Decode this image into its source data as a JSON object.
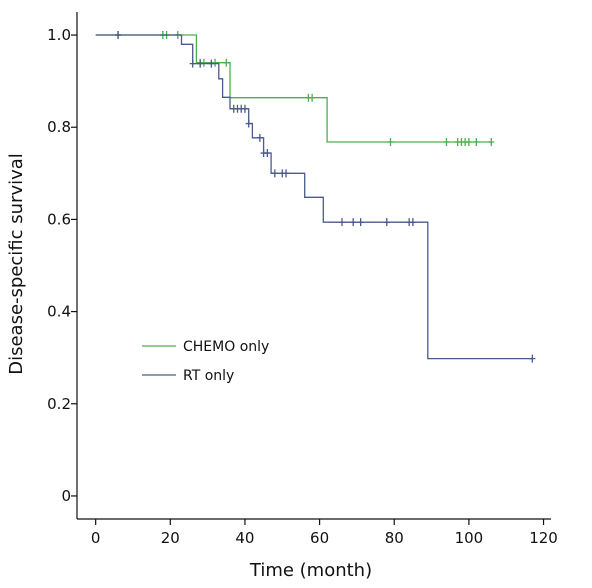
{
  "chart_data": {
    "type": "line",
    "title": "",
    "xlabel": "Time (month)",
    "ylabel": "Disease-specific survival",
    "xlim": [
      -5,
      122
    ],
    "ylim": [
      -0.05,
      1.05
    ],
    "x_ticks": [
      0,
      20,
      40,
      60,
      80,
      100,
      120
    ],
    "x_tick_labels": [
      "0",
      "20",
      "40",
      "60",
      "80",
      "100",
      "120"
    ],
    "y_ticks": [
      0,
      0.2,
      0.4,
      0.6,
      0.8,
      1.0
    ],
    "y_tick_labels": [
      "0",
      "0.2",
      "0.4",
      "0.6",
      "0.8",
      "1.0"
    ],
    "grid": false,
    "legend_position": "left-middle",
    "series": [
      {
        "name": "CHEMO only",
        "color": "#4caf50",
        "step_points": [
          [
            0,
            1.0
          ],
          [
            27,
            1.0
          ],
          [
            27,
            0.94
          ],
          [
            36,
            0.94
          ],
          [
            36,
            0.864
          ],
          [
            62,
            0.864
          ],
          [
            62,
            0.768
          ],
          [
            106,
            0.768
          ]
        ],
        "censored": [
          [
            6,
            1.0
          ],
          [
            18,
            1.0
          ],
          [
            19,
            1.0
          ],
          [
            22,
            1.0
          ],
          [
            28,
            0.94
          ],
          [
            29,
            0.94
          ],
          [
            32,
            0.94
          ],
          [
            35,
            0.94
          ],
          [
            57,
            0.864
          ],
          [
            58,
            0.864
          ],
          [
            79,
            0.768
          ],
          [
            94,
            0.768
          ],
          [
            97,
            0.768
          ],
          [
            98,
            0.768
          ],
          [
            99,
            0.768
          ],
          [
            100,
            0.768
          ],
          [
            102,
            0.768
          ],
          [
            106,
            0.768
          ]
        ]
      },
      {
        "name": "RT only",
        "color": "#4a5a8c",
        "step_points": [
          [
            0,
            1.0
          ],
          [
            23,
            1.0
          ],
          [
            23,
            0.98
          ],
          [
            26,
            0.98
          ],
          [
            26,
            0.938
          ],
          [
            33,
            0.938
          ],
          [
            33,
            0.905
          ],
          [
            34,
            0.905
          ],
          [
            34,
            0.865
          ],
          [
            36,
            0.865
          ],
          [
            36,
            0.84
          ],
          [
            41,
            0.84
          ],
          [
            41,
            0.808
          ],
          [
            42,
            0.808
          ],
          [
            42,
            0.777
          ],
          [
            45,
            0.777
          ],
          [
            45,
            0.744
          ],
          [
            47,
            0.744
          ],
          [
            47,
            0.7
          ],
          [
            56,
            0.7
          ],
          [
            56,
            0.648
          ],
          [
            61,
            0.648
          ],
          [
            61,
            0.594
          ],
          [
            89,
            0.594
          ],
          [
            89,
            0.298
          ],
          [
            117,
            0.298
          ]
        ],
        "censored": [
          [
            6,
            1.0
          ],
          [
            26,
            0.938
          ],
          [
            28,
            0.938
          ],
          [
            31,
            0.938
          ],
          [
            37,
            0.84
          ],
          [
            38,
            0.84
          ],
          [
            39,
            0.84
          ],
          [
            40,
            0.84
          ],
          [
            41,
            0.808
          ],
          [
            44,
            0.777
          ],
          [
            45,
            0.744
          ],
          [
            46,
            0.744
          ],
          [
            48,
            0.7
          ],
          [
            50,
            0.7
          ],
          [
            51,
            0.7
          ],
          [
            66,
            0.594
          ],
          [
            69,
            0.594
          ],
          [
            71,
            0.594
          ],
          [
            78,
            0.594
          ],
          [
            84,
            0.594
          ],
          [
            85,
            0.594
          ],
          [
            117,
            0.298
          ]
        ]
      }
    ]
  }
}
